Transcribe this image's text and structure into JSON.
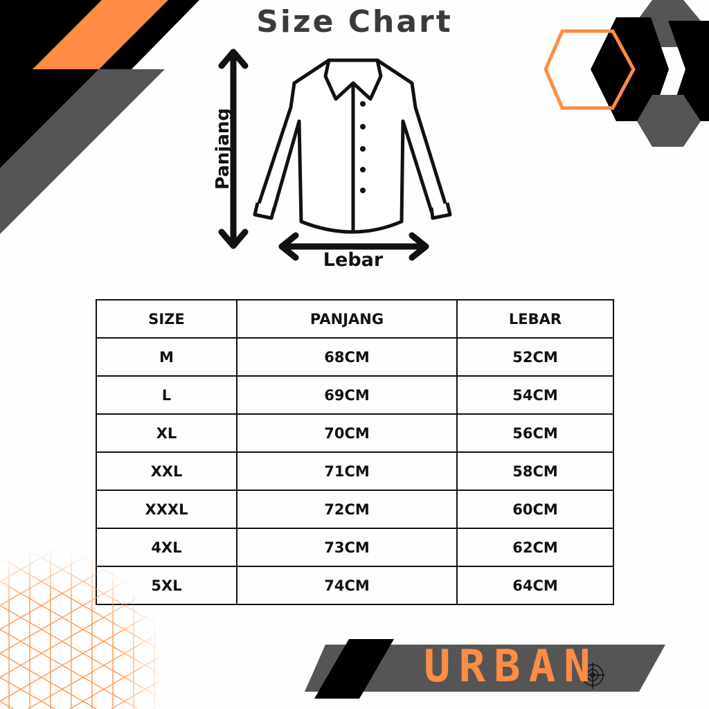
{
  "title": "Size Chart",
  "diagram": {
    "vertical_label": "Panjang",
    "horizontal_label": "Lebar"
  },
  "table": {
    "headers": [
      "SIZE",
      "PANJANG",
      "LEBAR"
    ],
    "rows": [
      [
        "M",
        "68CM",
        "52CM"
      ],
      [
        "L",
        "69CM",
        "54CM"
      ],
      [
        "XL",
        "70CM",
        "56CM"
      ],
      [
        "XXL",
        "71CM",
        "58CM"
      ],
      [
        "XXXL",
        "72CM",
        "60CM"
      ],
      [
        "4XL",
        "73CM",
        "62CM"
      ],
      [
        "5XL",
        "74CM",
        "64CM"
      ]
    ]
  },
  "brand": {
    "name": "URBAN"
  },
  "colors": {
    "accent": "#ff8c45",
    "dark": "#000000",
    "gray": "#555555"
  }
}
